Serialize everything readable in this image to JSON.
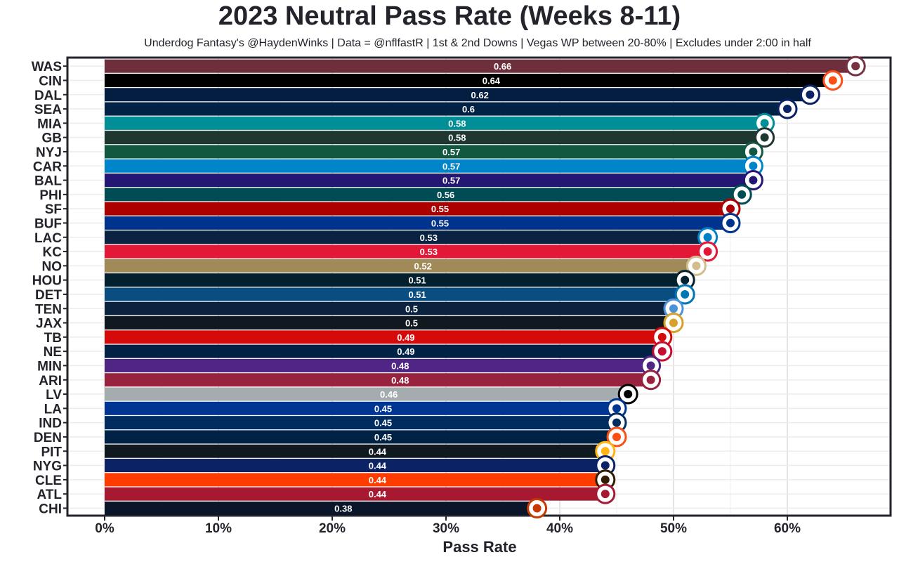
{
  "chart_data": {
    "type": "bar",
    "orientation": "horizontal",
    "title": "2023 Neutral Pass Rate (Weeks 8-11)",
    "subtitle": "Underdog Fantasy's @HaydenWinks | Data = @nflfastR | 1st & 2nd Downs | Vegas WP between 20-80% | Excludes under 2:00 in half",
    "xlabel": "Pass Rate",
    "xlim": [
      -0.032,
      0.69
    ],
    "xticks": [
      0,
      0.1,
      0.2,
      0.3,
      0.4,
      0.5,
      0.6
    ],
    "xtick_labels": [
      "0%",
      "10%",
      "20%",
      "30%",
      "40%",
      "50%",
      "60%"
    ],
    "grid": true,
    "legend": "none",
    "categories": [
      "WAS",
      "CIN",
      "DAL",
      "SEA",
      "MIA",
      "GB",
      "NYJ",
      "CAR",
      "BAL",
      "PHI",
      "SF",
      "BUF",
      "LAC",
      "KC",
      "NO",
      "HOU",
      "DET",
      "TEN",
      "JAX",
      "TB",
      "NE",
      "MIN",
      "ARI",
      "LV",
      "LA",
      "IND",
      "DEN",
      "PIT",
      "NYG",
      "CLE",
      "ATL",
      "CHI"
    ],
    "values": [
      0.66,
      0.64,
      0.62,
      0.6,
      0.58,
      0.58,
      0.57,
      0.57,
      0.57,
      0.56,
      0.55,
      0.55,
      0.53,
      0.53,
      0.52,
      0.51,
      0.51,
      0.5,
      0.5,
      0.49,
      0.49,
      0.48,
      0.48,
      0.46,
      0.45,
      0.45,
      0.45,
      0.44,
      0.44,
      0.44,
      0.44,
      0.38
    ],
    "value_labels": [
      "0.66",
      "0.64",
      "0.62",
      "0.6",
      "0.58",
      "0.58",
      "0.57",
      "0.57",
      "0.57",
      "0.56",
      "0.55",
      "0.55",
      "0.53",
      "0.53",
      "0.52",
      "0.51",
      "0.51",
      "0.5",
      "0.5",
      "0.49",
      "0.49",
      "0.48",
      "0.48",
      "0.46",
      "0.45",
      "0.45",
      "0.45",
      "0.44",
      "0.44",
      "0.44",
      "0.44",
      "0.38"
    ],
    "bar_colors": [
      "#6d2f3c",
      "#000000",
      "#041e42",
      "#002244",
      "#008e97",
      "#203731",
      "#125740",
      "#0085ca",
      "#241773",
      "#004c54",
      "#aa0000",
      "#00338d",
      "#0a2342",
      "#e31837",
      "#a08a58",
      "#03202f",
      "#0a4d80",
      "#0c2340",
      "#101820",
      "#d50a0a",
      "#002244",
      "#4f2683",
      "#97233f",
      "#a5acaf",
      "#003594",
      "#002c5f",
      "#002244",
      "#101820",
      "#0b2265",
      "#ff3c00",
      "#a71930",
      "#0b162a"
    ],
    "logo_colors": [
      "#773141",
      "#fb4f14",
      "#0b2265",
      "#0b2265",
      "#008e97",
      "#203731",
      "#125740",
      "#0085ca",
      "#241773",
      "#004c54",
      "#aa0000",
      "#00338d",
      "#0080c6",
      "#e31837",
      "#d3bc8d",
      "#03202f",
      "#0076b6",
      "#4b92db",
      "#d7a22a",
      "#d50a0a",
      "#c60c30",
      "#4f2683",
      "#97233f",
      "#000000",
      "#003594",
      "#002c5f",
      "#fb4f14",
      "#ffb612",
      "#0b2265",
      "#311d00",
      "#a71930",
      "#c83803"
    ]
  }
}
